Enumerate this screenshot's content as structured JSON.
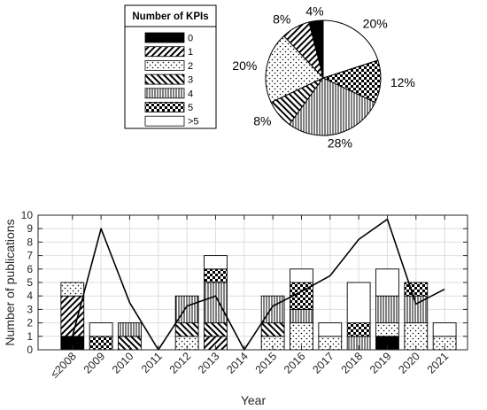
{
  "chart_data": [
    {
      "type": "pie",
      "legend": {
        "title": "Number of KPIs",
        "placement": "left"
      },
      "labels": [
        "0",
        "1",
        "2",
        "3",
        "4",
        "5",
        ">5"
      ],
      "values": [
        4,
        8,
        20,
        8,
        28,
        12,
        20
      ],
      "value_labels": [
        "4%",
        "8%",
        "20%",
        "8%",
        "28%",
        "12%",
        "20%"
      ],
      "patterns": [
        "black",
        "hatch-forward",
        "dots",
        "hatch-backward",
        "vertical-lines",
        "checkerboard",
        "white"
      ]
    },
    {
      "type": "bar",
      "stacked": true,
      "categories": [
        "≤2008",
        "2009",
        "2010",
        "2011",
        "2012",
        "2013",
        "2014",
        "2015",
        "2016",
        "2017",
        "2018",
        "2019",
        "2020",
        "2021"
      ],
      "series": [
        {
          "name": "0",
          "values": [
            1,
            0,
            0,
            0,
            0,
            0,
            0,
            0,
            0,
            0,
            0,
            1,
            0,
            0
          ]
        },
        {
          "name": "1",
          "values": [
            3,
            0,
            0,
            0,
            0,
            1,
            0,
            0,
            0,
            0,
            0,
            0,
            0,
            0
          ]
        },
        {
          "name": "2",
          "values": [
            1,
            0,
            0,
            0,
            1,
            0,
            0,
            1,
            2,
            1,
            0,
            1,
            2,
            1
          ]
        },
        {
          "name": "3",
          "values": [
            0,
            0,
            1,
            0,
            1,
            1,
            0,
            1,
            0,
            0,
            0,
            0,
            0,
            0
          ]
        },
        {
          "name": "4",
          "values": [
            0,
            0,
            1,
            0,
            2,
            3,
            0,
            2,
            1,
            0,
            1,
            2,
            2,
            0
          ]
        },
        {
          "name": "5",
          "values": [
            0,
            1,
            0,
            0,
            0,
            1,
            0,
            0,
            2,
            0,
            1,
            0,
            1,
            0
          ]
        },
        {
          "name": ">5",
          "values": [
            0,
            1,
            0,
            0,
            0,
            1,
            0,
            0,
            1,
            1,
            3,
            2,
            0,
            1
          ]
        }
      ],
      "line": {
        "values": [
          1,
          9,
          3.5,
          0,
          3.25,
          4,
          0,
          3.25,
          4.33,
          5.5,
          8.2,
          9.7,
          3.4,
          4.5
        ]
      },
      "xlabel": "Year",
      "ylabel": "Number of publications",
      "ylim": [
        0,
        10
      ],
      "yticks": [
        0,
        1,
        2,
        3,
        4,
        5,
        6,
        7,
        8,
        9,
        10
      ],
      "grid": true
    }
  ]
}
